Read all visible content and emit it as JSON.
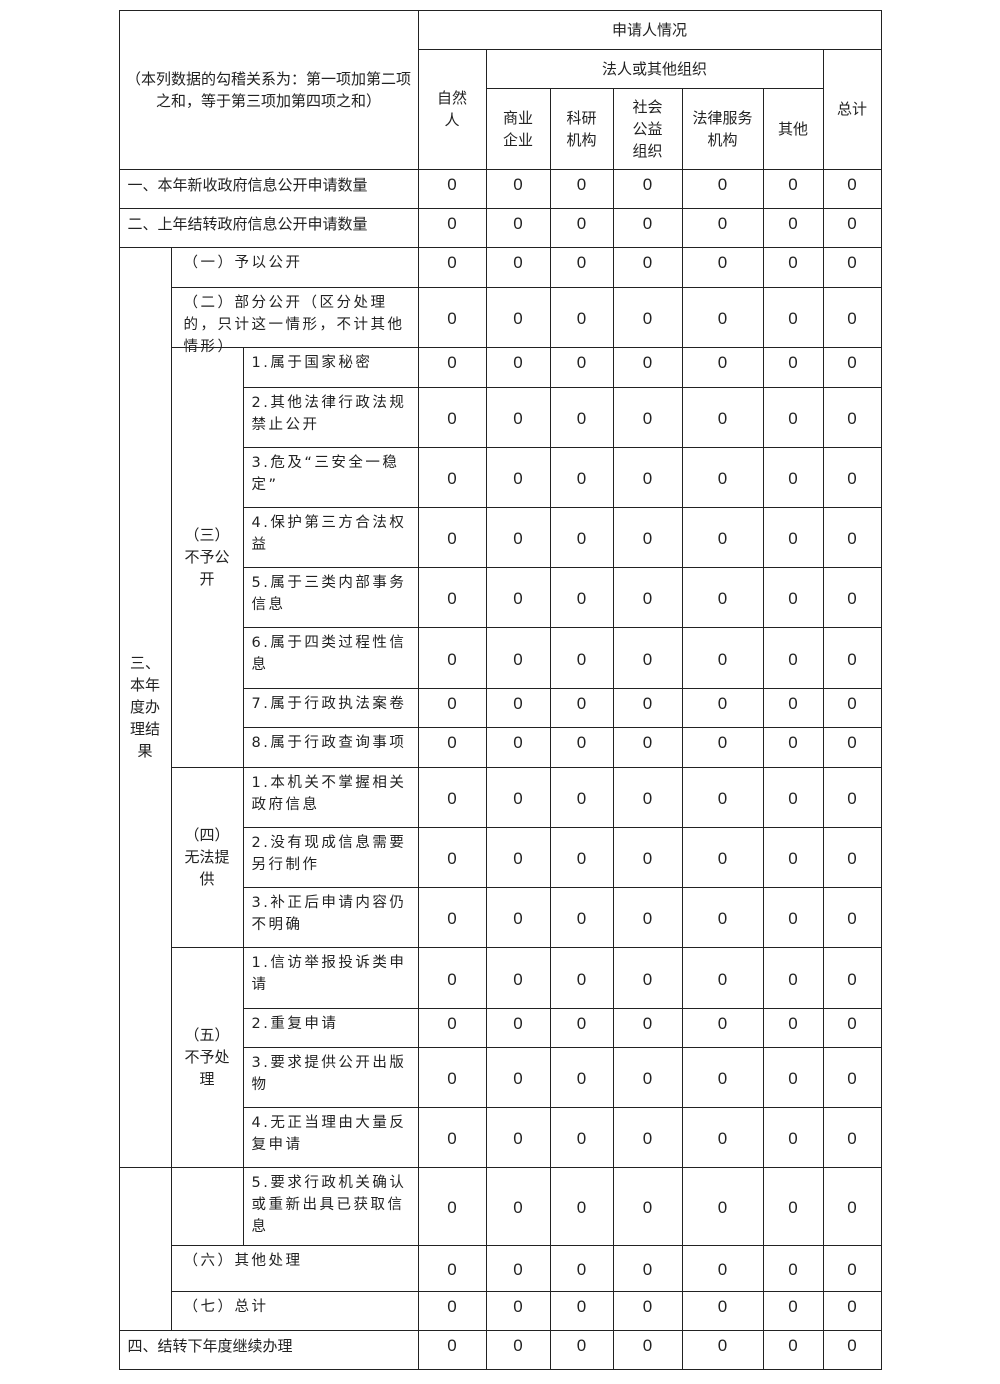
{
  "header": {
    "note": "（本列数据的勾稽关系为：第一项加第二项之和，等于第三项加第四项之和）",
    "applicant": "申请人情况",
    "natural_person": "自然人",
    "legal_group": "法人或其他组织",
    "sub_columns": [
      "商业企业",
      "科研机构",
      "社会公益组织",
      "法律服务机构",
      "其他"
    ],
    "total": "总计"
  },
  "groups": {
    "section3": "三、本年度办理结果",
    "g3": "（三）不予公开",
    "g4": "（四）无法提供",
    "g5": "（五）不予处理"
  },
  "rows": [
    {
      "label": "一、本年新收政府信息公开申请数量",
      "values": [
        "0",
        "0",
        "0",
        "0",
        "0",
        "0",
        "0"
      ]
    },
    {
      "label": "二、上年结转政府信息公开申请数量",
      "values": [
        "0",
        "0",
        "0",
        "0",
        "0",
        "0",
        "0"
      ]
    },
    {
      "label": "（一）予以公开",
      "values": [
        "0",
        "0",
        "0",
        "0",
        "0",
        "0",
        "0"
      ]
    },
    {
      "label": "（二）部分公开（区分处理的，只计这一情形，不计其他情形）",
      "values": [
        "0",
        "0",
        "0",
        "0",
        "0",
        "0",
        "0"
      ]
    },
    {
      "label": "1.属于国家秘密",
      "values": [
        "0",
        "0",
        "0",
        "0",
        "0",
        "0",
        "0"
      ]
    },
    {
      "label": "2.其他法律行政法规禁止公开",
      "values": [
        "0",
        "0",
        "0",
        "0",
        "0",
        "0",
        "0"
      ]
    },
    {
      "label": "3.危及“三安全一稳定”",
      "values": [
        "0",
        "0",
        "0",
        "0",
        "0",
        "0",
        "0"
      ]
    },
    {
      "label": "4.保护第三方合法权益",
      "values": [
        "0",
        "0",
        "0",
        "0",
        "0",
        "0",
        "0"
      ]
    },
    {
      "label": "5.属于三类内部事务信息",
      "values": [
        "0",
        "0",
        "0",
        "0",
        "0",
        "0",
        "0"
      ]
    },
    {
      "label": "6.属于四类过程性信息",
      "values": [
        "0",
        "0",
        "0",
        "0",
        "0",
        "0",
        "0"
      ]
    },
    {
      "label": "7.属于行政执法案卷",
      "values": [
        "0",
        "0",
        "0",
        "0",
        "0",
        "0",
        "0"
      ]
    },
    {
      "label": "8.属于行政查询事项",
      "values": [
        "0",
        "0",
        "0",
        "0",
        "0",
        "0",
        "0"
      ]
    },
    {
      "label": "1.本机关不掌握相关政府信息",
      "values": [
        "0",
        "0",
        "0",
        "0",
        "0",
        "0",
        "0"
      ]
    },
    {
      "label": "2.没有现成信息需要另行制作",
      "values": [
        "0",
        "0",
        "0",
        "0",
        "0",
        "0",
        "0"
      ]
    },
    {
      "label": "3.补正后申请内容仍不明确",
      "values": [
        "0",
        "0",
        "0",
        "0",
        "0",
        "0",
        "0"
      ]
    },
    {
      "label": "1.信访举报投诉类申请",
      "values": [
        "0",
        "0",
        "0",
        "0",
        "0",
        "0",
        "0"
      ]
    },
    {
      "label": "2.重复申请",
      "values": [
        "0",
        "0",
        "0",
        "0",
        "0",
        "0",
        "0"
      ]
    },
    {
      "label": "3.要求提供公开出版物",
      "values": [
        "0",
        "0",
        "0",
        "0",
        "0",
        "0",
        "0"
      ]
    },
    {
      "label": "4.无正当理由大量反复申请",
      "values": [
        "0",
        "0",
        "0",
        "0",
        "0",
        "0",
        "0"
      ]
    },
    {
      "label": "5.要求行政机关确认或重新出具已获取信息",
      "values": [
        "0",
        "0",
        "0",
        "0",
        "0",
        "0",
        "0"
      ]
    },
    {
      "label": "（六）其他处理",
      "values": [
        "0",
        "0",
        "0",
        "0",
        "0",
        "0",
        "0"
      ]
    },
    {
      "label": "（七）总计",
      "values": [
        "0",
        "0",
        "0",
        "0",
        "0",
        "0",
        "0"
      ]
    },
    {
      "label": "四、结转下年度继续办理",
      "values": [
        "0",
        "0",
        "0",
        "0",
        "0",
        "0",
        "0"
      ]
    }
  ]
}
